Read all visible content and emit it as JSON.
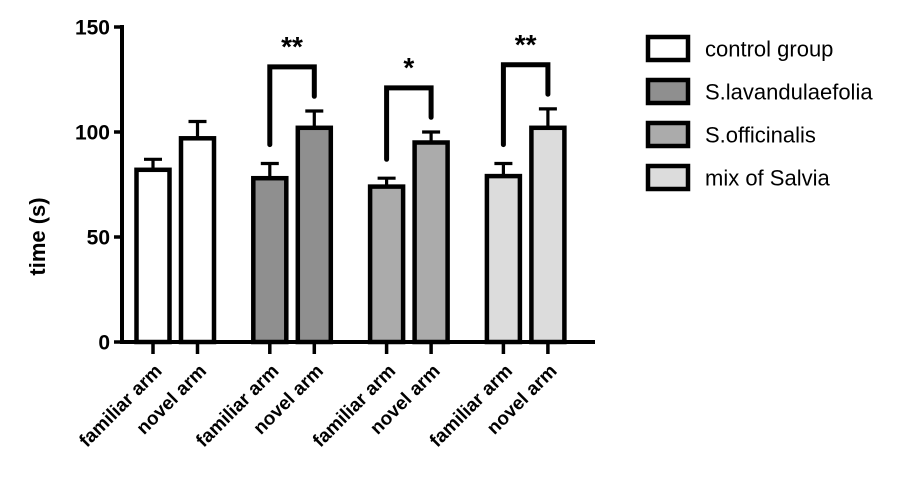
{
  "chart_data": {
    "type": "bar",
    "title": "",
    "xlabel": "",
    "ylabel": "time (s)",
    "ylim": [
      0,
      150
    ],
    "yticks": [
      0,
      50,
      100,
      150
    ],
    "bar_categories": [
      "familiar arm",
      "novel arm"
    ],
    "series": [
      {
        "name": "control group",
        "color": "#ffffff",
        "values": [
          82,
          97
        ],
        "errors": [
          5,
          8
        ],
        "significance": null
      },
      {
        "name": "S.lavandulaefolia",
        "color": "#8f8f8f",
        "values": [
          78,
          102
        ],
        "errors": [
          7,
          8
        ],
        "significance": "**"
      },
      {
        "name": "S.officinalis",
        "color": "#ababab",
        "values": [
          74,
          95
        ],
        "errors": [
          4,
          5
        ],
        "significance": "*"
      },
      {
        "name": "mix of Salvia",
        "color": "#dcdcdc",
        "values": [
          79,
          102
        ],
        "errors": [
          6,
          9
        ],
        "significance": "**"
      }
    ],
    "legend": [
      {
        "label": "control group",
        "color": "#ffffff"
      },
      {
        "label": "S.lavandulaefolia",
        "color": "#8f8f8f"
      },
      {
        "label": "S.officinalis",
        "color": "#ababab"
      },
      {
        "label": "mix of Salvia",
        "color": "#dcdcdc"
      }
    ],
    "legend_position": "right",
    "grid": false,
    "error_bars": "upper",
    "axis_color": "#000000",
    "background_color": "#ffffff"
  }
}
